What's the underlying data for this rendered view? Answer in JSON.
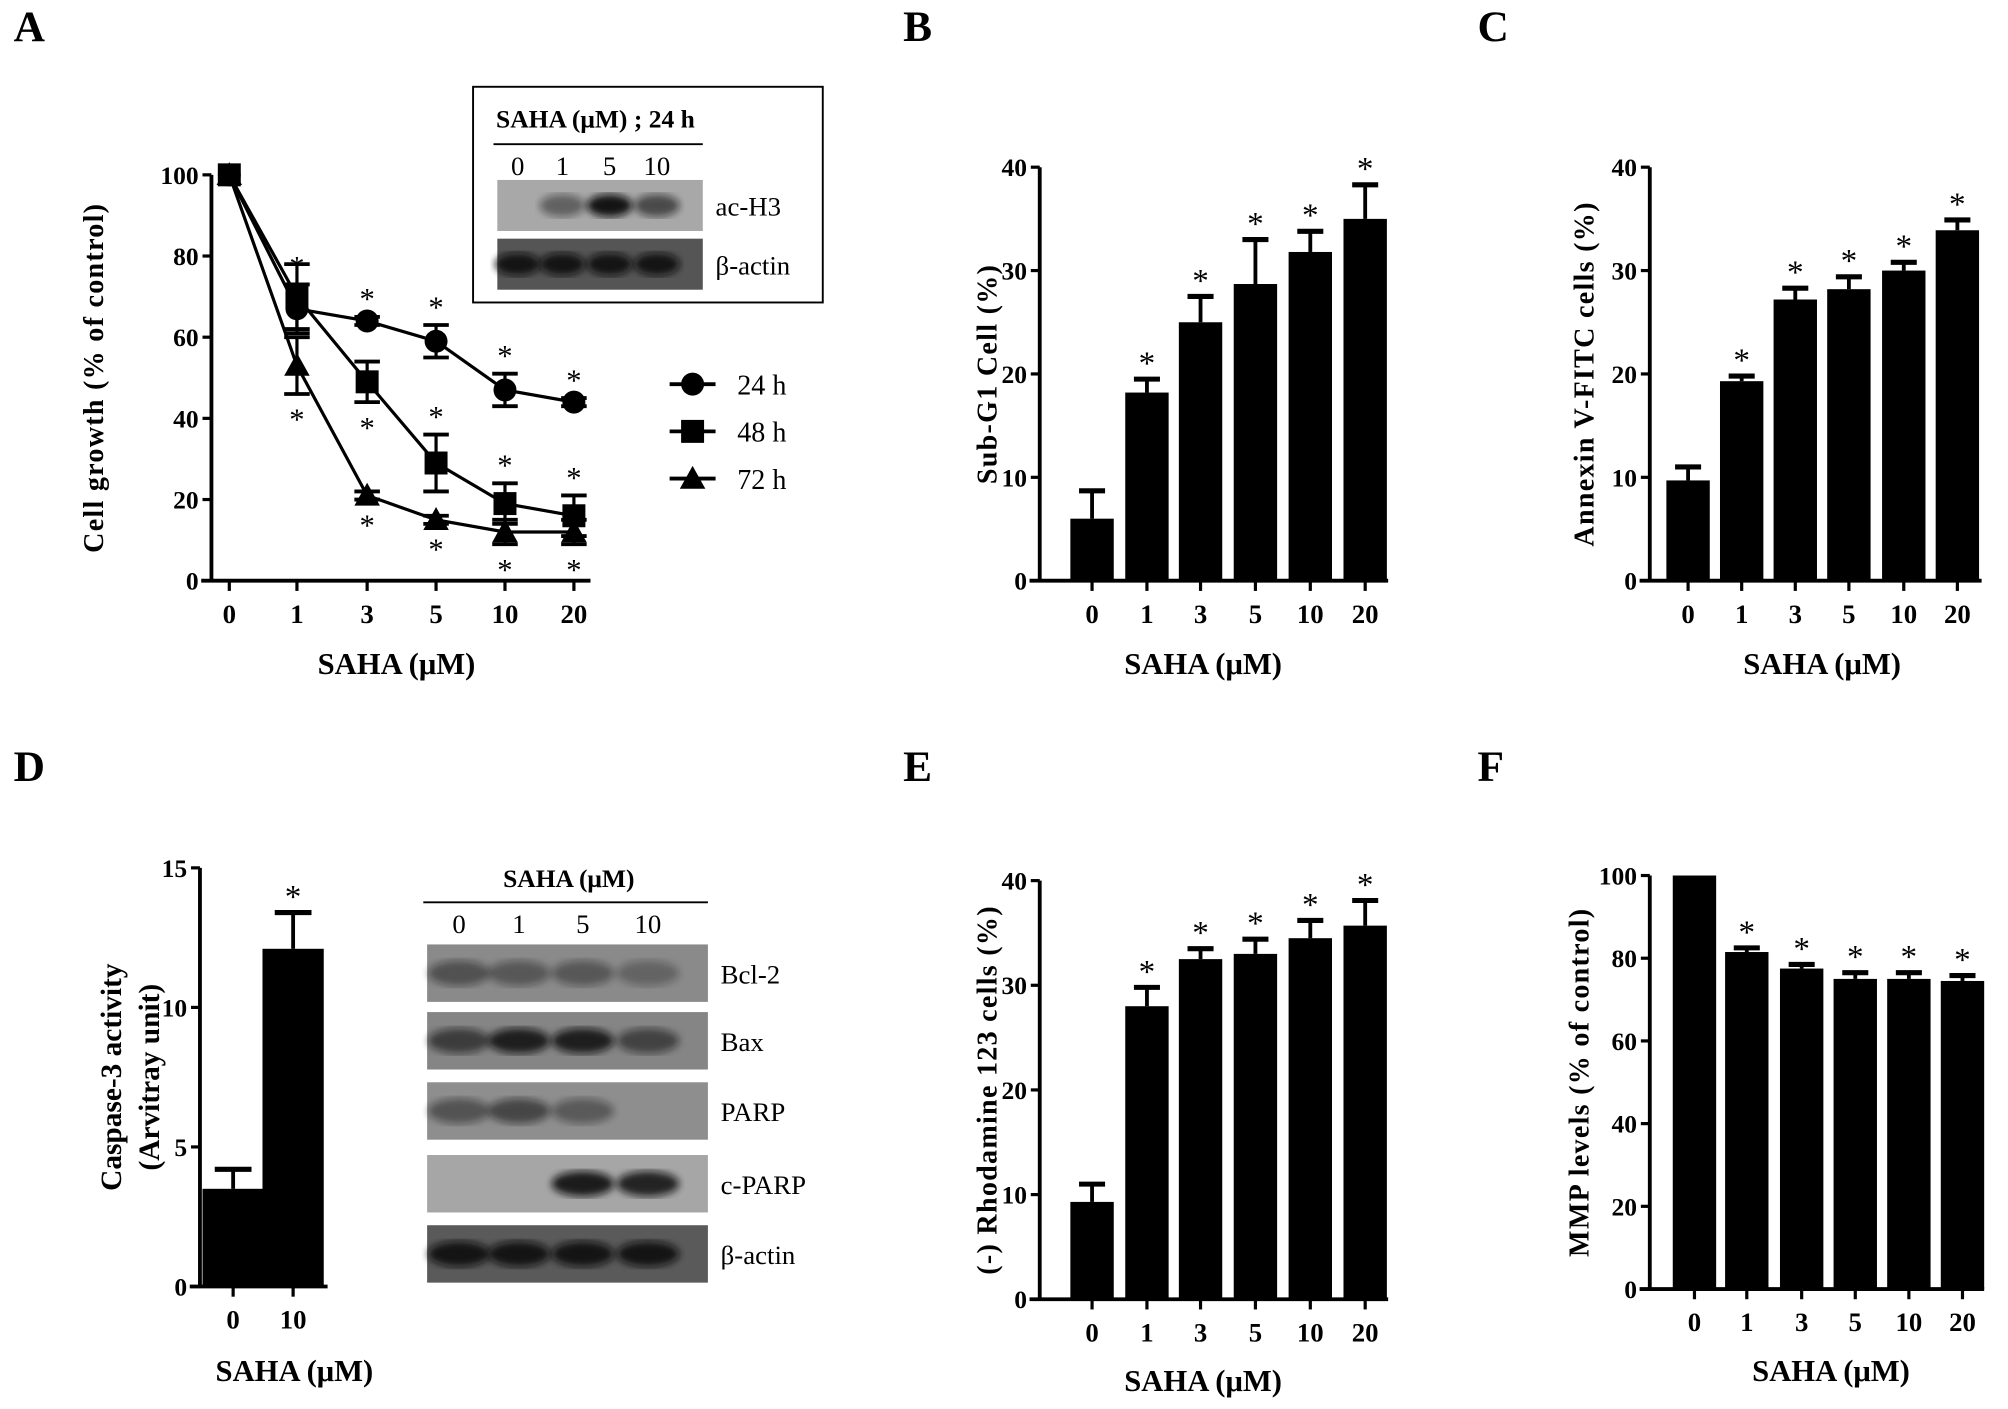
{
  "panels": {
    "A": "A",
    "B": "B",
    "C": "C",
    "D": "D",
    "E": "E",
    "F": "F"
  },
  "chart_data": [
    {
      "id": "A",
      "type": "line",
      "xlabel": "SAHA (μM)",
      "ylabel": "Cell growth (% of control)",
      "categories": [
        "0",
        "1",
        "3",
        "5",
        "10",
        "20"
      ],
      "ylim": [
        0,
        100
      ],
      "yticks": [
        0,
        20,
        40,
        60,
        80,
        100
      ],
      "legend_position": "right",
      "series": [
        {
          "name": "24 h",
          "marker": "circle",
          "values": [
            100,
            67,
            64,
            59,
            47,
            44
          ],
          "errors": [
            0,
            6,
            1,
            4,
            4,
            1
          ],
          "significant": [
            false,
            true,
            true,
            true,
            true,
            true
          ]
        },
        {
          "name": "48 h",
          "marker": "square",
          "values": [
            100,
            70,
            49,
            29,
            19,
            16
          ],
          "errors": [
            0,
            8,
            5,
            7,
            5,
            5
          ],
          "significant": [
            false,
            false,
            true,
            true,
            true,
            true
          ]
        },
        {
          "name": "72 h",
          "marker": "triangle",
          "values": [
            100,
            53,
            21,
            15,
            12,
            12
          ],
          "errors": [
            0,
            7,
            1,
            1,
            3,
            3
          ],
          "significant": [
            false,
            true,
            true,
            true,
            true,
            true
          ]
        }
      ],
      "inset_blot": {
        "title": "SAHA (μM) ; 24 h",
        "lanes": [
          "0",
          "1",
          "5",
          "10"
        ],
        "rows": [
          {
            "label": "ac-H3",
            "band_intensity": [
              0.0,
              0.45,
              0.95,
              0.6
            ],
            "background": "#a8a8a8"
          },
          {
            "label": "β-actin",
            "band_intensity": [
              0.9,
              0.9,
              0.9,
              0.9
            ],
            "background": "#555555"
          }
        ]
      }
    },
    {
      "id": "B",
      "type": "bar",
      "xlabel": "SAHA (μM)",
      "ylabel": "Sub-G1 Cell (%)",
      "categories": [
        "0",
        "1",
        "3",
        "5",
        "10",
        "20"
      ],
      "ylim": [
        0,
        40
      ],
      "yticks": [
        0,
        10,
        20,
        30,
        40
      ],
      "values": [
        6,
        18.2,
        25,
        28.7,
        31.8,
        35
      ],
      "errors": [
        2.7,
        1.3,
        2.5,
        4.3,
        2,
        3.3
      ],
      "significant": [
        false,
        true,
        true,
        true,
        true,
        true
      ]
    },
    {
      "id": "C",
      "type": "bar",
      "xlabel": "SAHA (μM)",
      "ylabel": "Annexin V-FITC cells (%)",
      "categories": [
        "0",
        "1",
        "3",
        "5",
        "10",
        "20"
      ],
      "ylim": [
        0,
        40
      ],
      "yticks": [
        0,
        10,
        20,
        30,
        40
      ],
      "values": [
        9.7,
        19.3,
        27.2,
        28.2,
        30,
        33.9
      ],
      "errors": [
        1.3,
        0.5,
        1.1,
        1.2,
        0.8,
        1
      ],
      "significant": [
        false,
        true,
        true,
        true,
        true,
        true
      ]
    },
    {
      "id": "D",
      "type": "bar",
      "xlabel": "SAHA (μM)",
      "ylabel": [
        "Caspase-3 activity",
        "(Arvitray unit)"
      ],
      "categories": [
        "0",
        "10"
      ],
      "ylim": [
        0,
        15
      ],
      "yticks": [
        0,
        5,
        10,
        15
      ],
      "values": [
        3.5,
        12.1
      ],
      "errors": [
        0.7,
        1.3
      ],
      "significant": [
        false,
        true
      ],
      "blot": {
        "title": "SAHA (μM)",
        "lanes": [
          "0",
          "1",
          "5",
          "10"
        ],
        "rows": [
          {
            "label": "Bcl-2",
            "band_intensity": [
              0.45,
              0.4,
              0.4,
              0.3
            ],
            "background": "#8a8a8a"
          },
          {
            "label": "Bax",
            "band_intensity": [
              0.6,
              0.85,
              0.85,
              0.55
            ],
            "background": "#858585"
          },
          {
            "label": "PARP",
            "band_intensity": [
              0.45,
              0.55,
              0.4,
              0.0
            ],
            "background": "#8e8e8e"
          },
          {
            "label": "c-PARP",
            "band_intensity": [
              0.0,
              0.0,
              0.9,
              0.85
            ],
            "background": "#a6a6a6"
          },
          {
            "label": "β-actin",
            "band_intensity": [
              0.9,
              0.9,
              0.9,
              0.9
            ],
            "background": "#5a5a5a"
          }
        ]
      }
    },
    {
      "id": "E",
      "type": "bar",
      "xlabel": "SAHA (μM)",
      "ylabel": "(-) Rhodamine 123 cells (%)",
      "categories": [
        "0",
        "1",
        "3",
        "5",
        "10",
        "20"
      ],
      "ylim": [
        0,
        40
      ],
      "yticks": [
        0,
        10,
        20,
        30,
        40
      ],
      "values": [
        9.3,
        28,
        32.5,
        33,
        34.5,
        35.7
      ],
      "errors": [
        1.7,
        1.8,
        1,
        1.4,
        1.7,
        2.4
      ],
      "significant": [
        false,
        true,
        true,
        true,
        true,
        true
      ]
    },
    {
      "id": "F",
      "type": "bar",
      "xlabel": "SAHA (μM)",
      "ylabel": "MMP levels (% of control)",
      "categories": [
        "0",
        "1",
        "3",
        "5",
        "10",
        "20"
      ],
      "ylim": [
        0,
        100
      ],
      "yticks": [
        0,
        20,
        40,
        60,
        80,
        100
      ],
      "values": [
        100,
        81.5,
        77.5,
        75,
        75,
        74.5
      ],
      "errors": [
        0,
        1,
        1,
        1.5,
        1.5,
        1.3
      ],
      "significant": [
        false,
        true,
        true,
        true,
        true,
        true
      ]
    }
  ],
  "significance_marker": "*"
}
